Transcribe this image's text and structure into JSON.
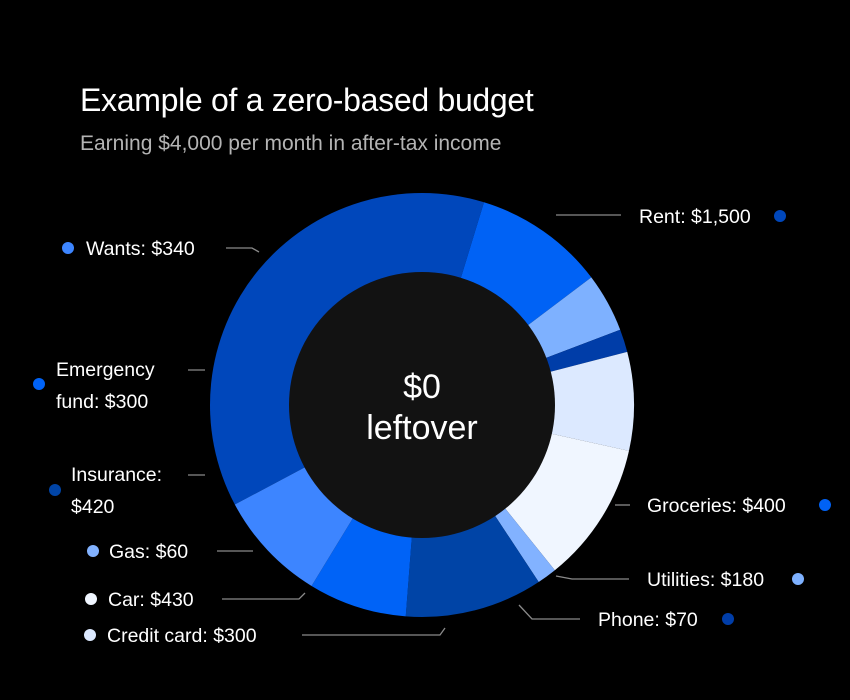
{
  "chart_data": {
    "type": "pie",
    "variant": "donut",
    "title": "Example of a zero-based budget",
    "subtitle": "Earning $4,000 per month in after-tax income",
    "center_label": [
      "$0",
      "leftover"
    ],
    "slices": [
      {
        "category": "Rent",
        "value": 1500,
        "color": "#0047BB",
        "label": [
          "Rent: $1,500"
        ]
      },
      {
        "category": "Groceries",
        "value": 400,
        "color": "#0062F5",
        "label": [
          "Groceries: $400"
        ]
      },
      {
        "category": "Utilities",
        "value": 180,
        "color": "#7EB1FF",
        "label": [
          "Utilities: $180"
        ]
      },
      {
        "category": "Phone",
        "value": 70,
        "color": "#003DA8",
        "label": [
          "Phone: $70"
        ]
      },
      {
        "category": "Credit card",
        "value": 300,
        "color": "#DCE9FF",
        "label": [
          "Credit card: $300"
        ]
      },
      {
        "category": "Car",
        "value": 430,
        "color": "#F0F6FF",
        "label": [
          "Car: $430"
        ]
      },
      {
        "category": "Gas",
        "value": 60,
        "color": "#82B2FF",
        "label": [
          "Gas: $60"
        ]
      },
      {
        "category": "Insurance",
        "value": 420,
        "color": "#0044A6",
        "label": [
          "Insurance:",
          "$420"
        ]
      },
      {
        "category": "Emergency fund",
        "value": 300,
        "color": "#0063F7",
        "label": [
          "Emergency",
          "fund: $300"
        ]
      },
      {
        "category": "Wants",
        "value": 340,
        "color": "#3D85FF",
        "label": [
          "Wants: $340"
        ]
      }
    ],
    "legend": "none"
  },
  "colors": {
    "background": "#000000",
    "center_fill": "#121212",
    "leader_line": "#8a8a8a"
  }
}
